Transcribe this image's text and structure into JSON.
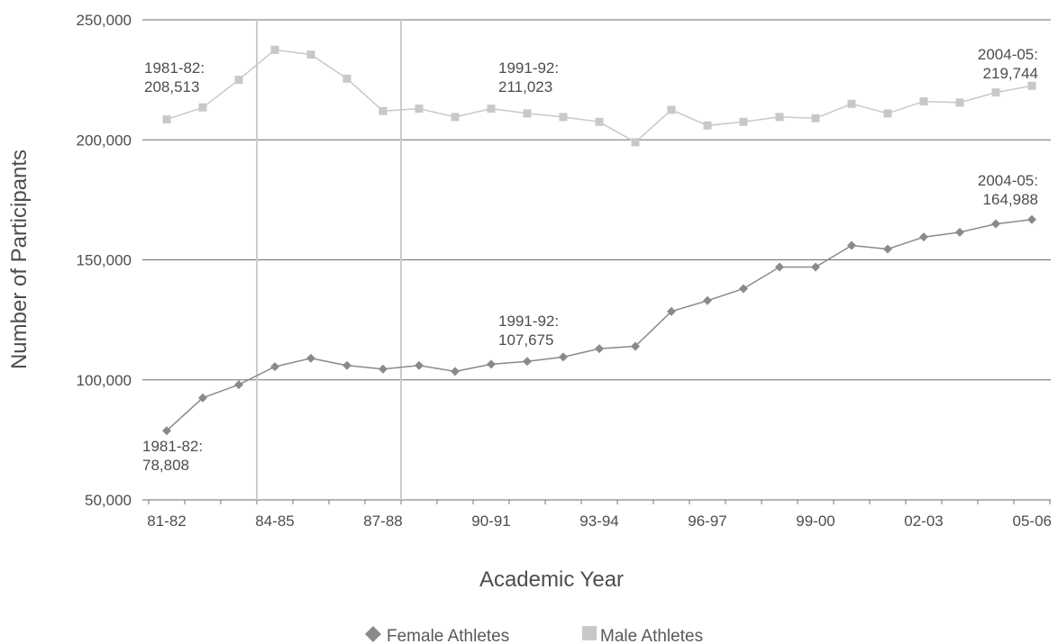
{
  "chart_data": {
    "type": "line",
    "title": "",
    "xlabel": "Academic Year",
    "ylabel": "Number of Participants",
    "ylim": [
      50000,
      250000
    ],
    "yticks": [
      "50,000",
      "100,000",
      "150,000",
      "200,000",
      "250,000"
    ],
    "ytick_values": [
      50000,
      100000,
      150000,
      200000,
      250000
    ],
    "x": [
      "81-82",
      "82-83",
      "83-84",
      "84-85",
      "85-86",
      "86-87",
      "87-88",
      "88-89",
      "89-90",
      "90-91",
      "91-92",
      "92-93",
      "93-94",
      "94-95",
      "95-96",
      "96-97",
      "97-98",
      "98-99",
      "99-00",
      "00-01",
      "01-02",
      "02-03",
      "03-04",
      "04-05",
      "05-06"
    ],
    "xtick_labels": [
      "81-82",
      "84-85",
      "87-88",
      "90-91",
      "93-94",
      "96-97",
      "99-00",
      "02-03",
      "05-06"
    ],
    "vertical_reference_lines": [
      "84-85",
      "88-89"
    ],
    "grid": true,
    "legend_position": "bottom",
    "series": [
      {
        "name": "Female Athletes",
        "marker": "diamond",
        "color": "#8a8a8a",
        "values": [
          78808,
          92500,
          98000,
          105500,
          109000,
          106000,
          104500,
          106000,
          103500,
          106500,
          107675,
          109500,
          113000,
          114000,
          128500,
          133000,
          138000,
          147000,
          147000,
          156000,
          154500,
          159500,
          161500,
          164988,
          166800
        ]
      },
      {
        "name": "Male Athletes",
        "marker": "square",
        "color": "#c8c8c8",
        "values": [
          208513,
          213500,
          225000,
          237500,
          235500,
          225500,
          212000,
          213000,
          209500,
          213000,
          211023,
          209500,
          207500,
          199000,
          212500,
          206000,
          207500,
          209500,
          209000,
          215000,
          211000,
          216000,
          215500,
          219744,
          222500
        ]
      }
    ],
    "annotations": [
      {
        "series": "Male Athletes",
        "x": "81-82",
        "lines": [
          "1981-82:",
          "208,513"
        ]
      },
      {
        "series": "Male Athletes",
        "x": "91-92",
        "lines": [
          "1991-92:",
          "211,023"
        ]
      },
      {
        "series": "Male Athletes",
        "x": "04-05",
        "lines": [
          "2004-05:",
          "219,744"
        ]
      },
      {
        "series": "Female Athletes",
        "x": "81-82",
        "lines": [
          "1981-82:",
          "78,808"
        ]
      },
      {
        "series": "Female Athletes",
        "x": "91-92",
        "lines": [
          "1991-92:",
          "107,675"
        ]
      },
      {
        "series": "Female Athletes",
        "x": "04-05",
        "lines": [
          "2004-05:",
          "164,988"
        ]
      }
    ]
  }
}
